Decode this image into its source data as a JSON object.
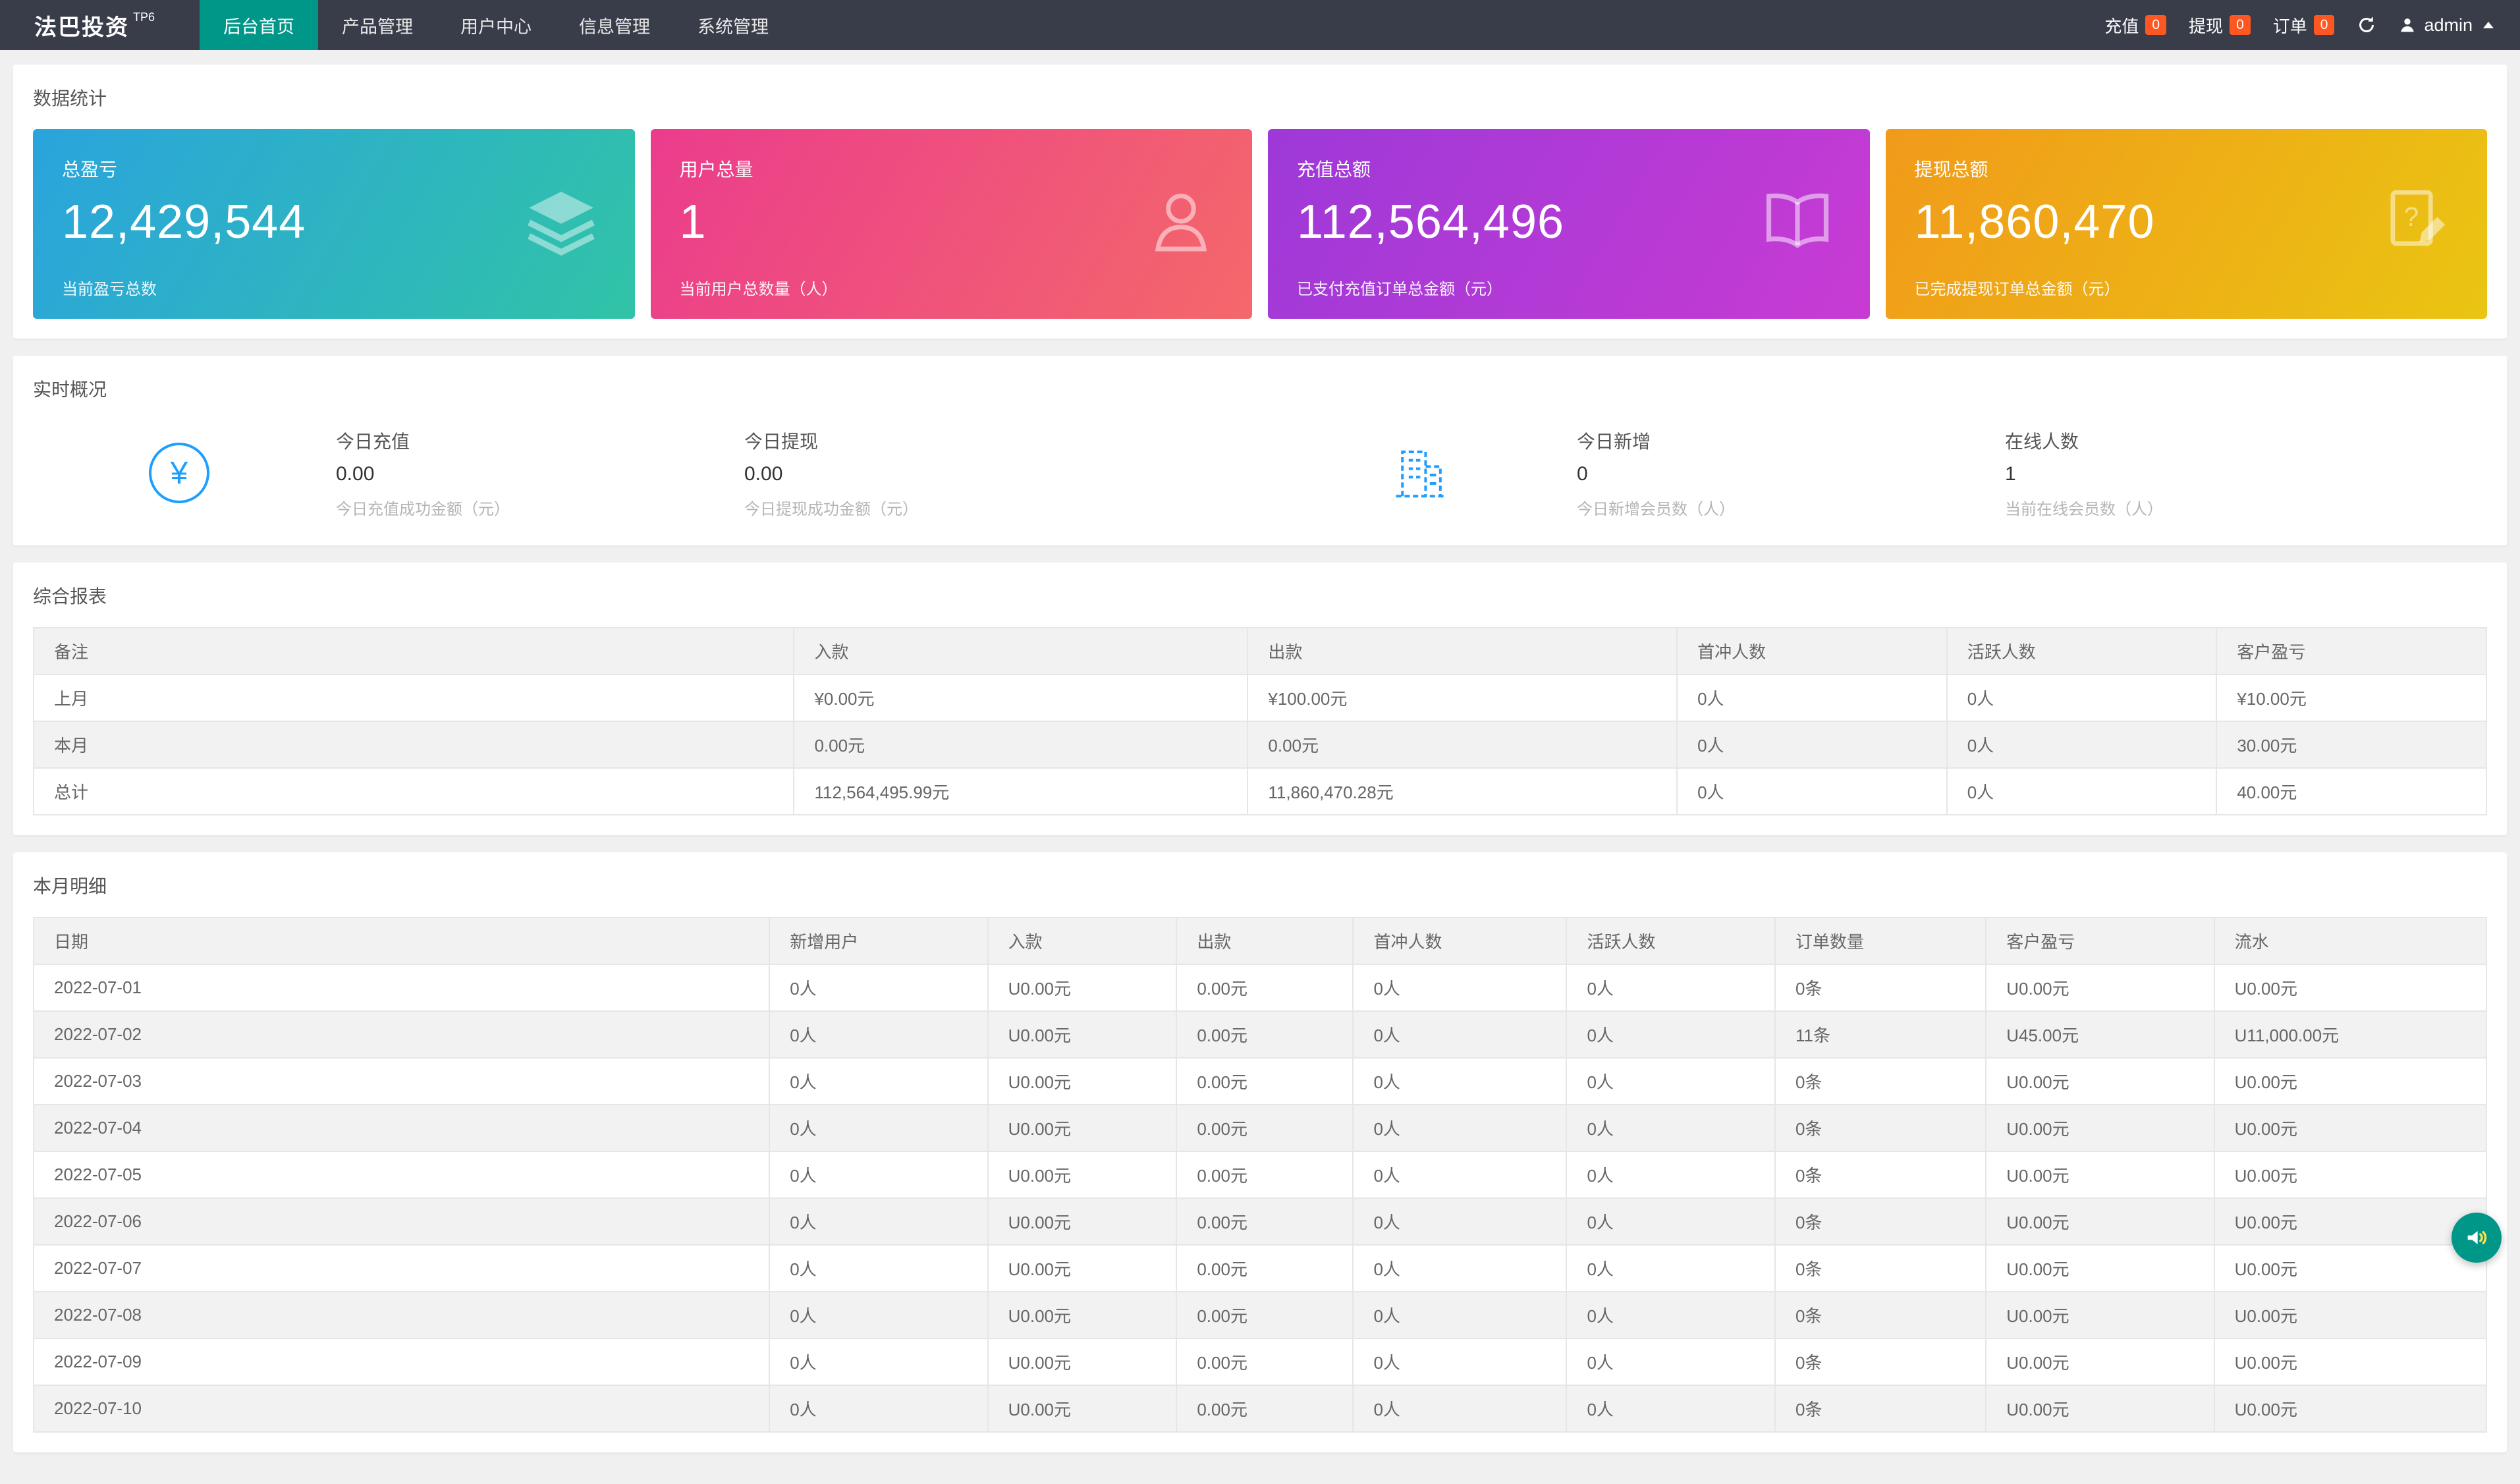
{
  "navbar": {
    "brand": "法巴投资",
    "brand_sup": "TP6",
    "menu": [
      {
        "label": "后台首页",
        "active": true
      },
      {
        "label": "产品管理",
        "active": false
      },
      {
        "label": "用户中心",
        "active": false
      },
      {
        "label": "信息管理",
        "active": false
      },
      {
        "label": "系统管理",
        "active": false
      }
    ],
    "quick": [
      {
        "label": "充值",
        "count": "0"
      },
      {
        "label": "提现",
        "count": "0"
      },
      {
        "label": "订单",
        "count": "0"
      }
    ],
    "user": "admin"
  },
  "colors": {
    "navbar_bg": "#393d49",
    "active_menu": "#009688",
    "badge": "#ff5722",
    "accent_blue": "#1e9fff",
    "float_button": "#009688"
  },
  "stats": {
    "section_title": "数据统计",
    "cards": [
      {
        "title": "总盈亏",
        "value": "12,429,544",
        "caption": "当前盈亏总数",
        "icon": "layers-icon",
        "gradient_from": "#2aa4dd",
        "gradient_to": "#31c3a7"
      },
      {
        "title": "用户总量",
        "value": "1",
        "caption": "当前用户总数量（人）",
        "icon": "user-icon",
        "gradient_from": "#eb3c8d",
        "gradient_to": "#f4686a"
      },
      {
        "title": "充值总额",
        "value": "112,564,496",
        "caption": "已支付充值订单总金额（元）",
        "icon": "book-icon",
        "gradient_from": "#9d39d8",
        "gradient_to": "#c83bd3"
      },
      {
        "title": "提现总额",
        "value": "11,860,470",
        "caption": "已完成提现订单总金额（元）",
        "icon": "document-edit-icon",
        "gradient_from": "#f19a1a",
        "gradient_to": "#eac512"
      }
    ]
  },
  "realtime": {
    "section_title": "实时概况",
    "items": [
      {
        "title": "今日充值",
        "value": "0.00",
        "caption": "今日充值成功金额（元）"
      },
      {
        "title": "今日提现",
        "value": "0.00",
        "caption": "今日提现成功金额（元）"
      },
      {
        "title": "今日新增",
        "value": "0",
        "caption": "今日新增会员数（人）"
      },
      {
        "title": "在线人数",
        "value": "1",
        "caption": "当前在线会员数（人）"
      }
    ]
  },
  "summary_report": {
    "section_title": "综合报表",
    "headers": [
      "备注",
      "入款",
      "出款",
      "首冲人数",
      "活跃人数",
      "客户盈亏"
    ],
    "rows": [
      [
        "上月",
        "¥0.00元",
        "¥100.00元",
        "0人",
        "0人",
        "¥10.00元"
      ],
      [
        "本月",
        "0.00元",
        "0.00元",
        "0人",
        "0人",
        "30.00元"
      ],
      [
        "总计",
        "112,564,495.99元",
        "11,860,470.28元",
        "0人",
        "0人",
        "40.00元"
      ]
    ]
  },
  "month_detail": {
    "section_title": "本月明细",
    "headers": [
      "日期",
      "新增用户",
      "入款",
      "出款",
      "首冲人数",
      "活跃人数",
      "订单数量",
      "客户盈亏",
      "流水"
    ],
    "rows": [
      [
        "2022-07-01",
        "0人",
        "U0.00元",
        "0.00元",
        "0人",
        "0人",
        "0条",
        "U0.00元",
        "U0.00元"
      ],
      [
        "2022-07-02",
        "0人",
        "U0.00元",
        "0.00元",
        "0人",
        "0人",
        "11条",
        "U45.00元",
        "U11,000.00元"
      ],
      [
        "2022-07-03",
        "0人",
        "U0.00元",
        "0.00元",
        "0人",
        "0人",
        "0条",
        "U0.00元",
        "U0.00元"
      ],
      [
        "2022-07-04",
        "0人",
        "U0.00元",
        "0.00元",
        "0人",
        "0人",
        "0条",
        "U0.00元",
        "U0.00元"
      ],
      [
        "2022-07-05",
        "0人",
        "U0.00元",
        "0.00元",
        "0人",
        "0人",
        "0条",
        "U0.00元",
        "U0.00元"
      ],
      [
        "2022-07-06",
        "0人",
        "U0.00元",
        "0.00元",
        "0人",
        "0人",
        "0条",
        "U0.00元",
        "U0.00元"
      ],
      [
        "2022-07-07",
        "0人",
        "U0.00元",
        "0.00元",
        "0人",
        "0人",
        "0条",
        "U0.00元",
        "U0.00元"
      ],
      [
        "2022-07-08",
        "0人",
        "U0.00元",
        "0.00元",
        "0人",
        "0人",
        "0条",
        "U0.00元",
        "U0.00元"
      ],
      [
        "2022-07-09",
        "0人",
        "U0.00元",
        "0.00元",
        "0人",
        "0人",
        "0条",
        "U0.00元",
        "U0.00元"
      ],
      [
        "2022-07-10",
        "0人",
        "U0.00元",
        "0.00元",
        "0人",
        "0人",
        "0条",
        "U0.00元",
        "U0.00元"
      ]
    ]
  }
}
